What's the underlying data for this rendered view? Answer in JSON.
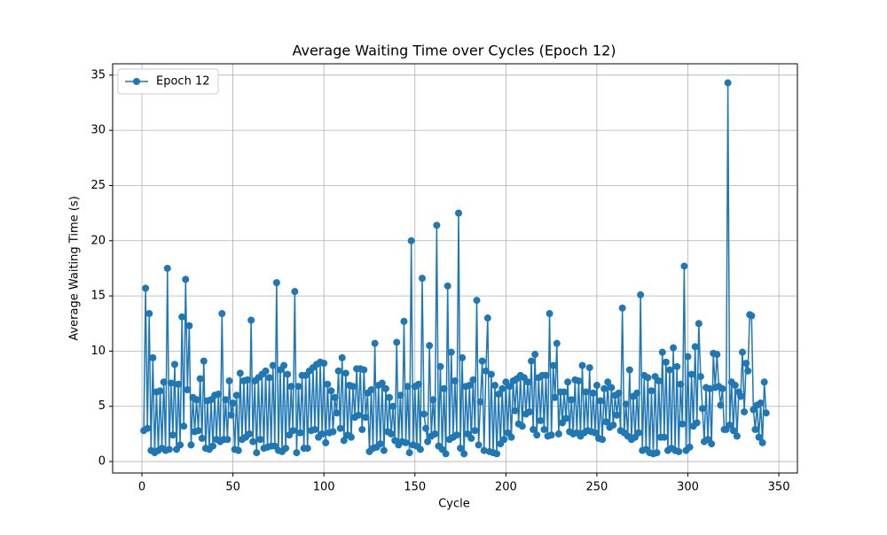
{
  "chart_data": {
    "type": "line",
    "title": "Average Waiting Time over Cycles (Epoch 12)",
    "x_label": "Cycle",
    "y_label": "Average Waiting Time (s)",
    "x": [
      1,
      2,
      3,
      4,
      5,
      6,
      7,
      8,
      9,
      10,
      11,
      12,
      13,
      14,
      15,
      16,
      17,
      18,
      19,
      20,
      21,
      22,
      23,
      24,
      25,
      26,
      27,
      28,
      29,
      30,
      31,
      32,
      33,
      34,
      35,
      36,
      37,
      38,
      39,
      40,
      41,
      42,
      43,
      44,
      45,
      46,
      47,
      48,
      49,
      50,
      51,
      52,
      53,
      54,
      55,
      56,
      57,
      58,
      59,
      60,
      61,
      62,
      63,
      64,
      65,
      66,
      67,
      68,
      69,
      70,
      71,
      72,
      73,
      74,
      75,
      76,
      77,
      78,
      79,
      80,
      81,
      82,
      83,
      84,
      85,
      86,
      87,
      88,
      89,
      90,
      91,
      92,
      93,
      94,
      95,
      96,
      97,
      98,
      99,
      100,
      101,
      102,
      103,
      104,
      105,
      106,
      107,
      108,
      109,
      110,
      111,
      112,
      113,
      114,
      115,
      116,
      117,
      118,
      119,
      120,
      121,
      122,
      123,
      124,
      125,
      126,
      127,
      128,
      129,
      130,
      131,
      132,
      133,
      134,
      135,
      136,
      137,
      138,
      139,
      140,
      141,
      142,
      143,
      144,
      145,
      146,
      147,
      148,
      149,
      150,
      151,
      152,
      153,
      154,
      155,
      156,
      157,
      158,
      159,
      160,
      161,
      162,
      163,
      164,
      165,
      166,
      167,
      168,
      169,
      170,
      171,
      172,
      173,
      174,
      175,
      176,
      177,
      178,
      179,
      180,
      181,
      182,
      183,
      184,
      185,
      186,
      187,
      188,
      189,
      190,
      191,
      192,
      193,
      194,
      195,
      196,
      197,
      198,
      199,
      200,
      201,
      202,
      203,
      204,
      205,
      206,
      207,
      208,
      209,
      210,
      211,
      212,
      213,
      214,
      215,
      216,
      217,
      218,
      219,
      220,
      221,
      222,
      223,
      224,
      225,
      226,
      227,
      228,
      229,
      230,
      231,
      232,
      233,
      234,
      235,
      236,
      237,
      238,
      239,
      240,
      241,
      242,
      243,
      244,
      245,
      246,
      247,
      248,
      249,
      250,
      251,
      252,
      253,
      254,
      255,
      256,
      257,
      258,
      259,
      260,
      261,
      262,
      263,
      264,
      265,
      266,
      267,
      268,
      269,
      270,
      271,
      272,
      273,
      274,
      275,
      276,
      277,
      278,
      279,
      280,
      281,
      282,
      283,
      284,
      285,
      286,
      287,
      288,
      289,
      290,
      291,
      292,
      293,
      294,
      295,
      296,
      297,
      298,
      299,
      300,
      301,
      302,
      303,
      304,
      305,
      306,
      307,
      308,
      309,
      310,
      311,
      312,
      313,
      314,
      315,
      316,
      317,
      318,
      319,
      320,
      321,
      322,
      323,
      324,
      325,
      326,
      327,
      328,
      329,
      330,
      331,
      332,
      333,
      334,
      335,
      336,
      337,
      338,
      339,
      340,
      341,
      342,
      343
    ],
    "series": [
      {
        "name": "Epoch 12",
        "color": "#1f77b4",
        "values": [
          2.8,
          15.7,
          3.0,
          13.4,
          1.0,
          9.4,
          0.8,
          6.3,
          1.0,
          6.4,
          1.2,
          7.2,
          1.0,
          17.5,
          1.1,
          7.1,
          2.4,
          8.8,
          1.1,
          7.0,
          1.5,
          13.1,
          3.2,
          16.5,
          6.5,
          12.3,
          1.5,
          5.8,
          2.7,
          5.6,
          2.8,
          7.5,
          2.1,
          9.1,
          1.2,
          5.5,
          1.1,
          5.6,
          1.4,
          6.0,
          2.0,
          6.1,
          1.8,
          13.4,
          2.0,
          5.6,
          2.0,
          7.3,
          4.2,
          5.3,
          1.1,
          6.0,
          1.0,
          8.0,
          2.0,
          7.3,
          2.2,
          7.4,
          2.5,
          12.8,
          1.8,
          7.3,
          0.8,
          7.6,
          2.0,
          7.9,
          1.2,
          8.2,
          1.3,
          7.6,
          1.4,
          8.7,
          1.4,
          16.2,
          1.0,
          8.3,
          0.9,
          8.7,
          1.2,
          7.9,
          2.4,
          6.8,
          2.8,
          15.4,
          0.8,
          6.8,
          2.6,
          7.8,
          1.2,
          7.8,
          1.2,
          8.2,
          2.8,
          8.5,
          2.9,
          8.8,
          2.2,
          9.0,
          2.5,
          8.9,
          1.7,
          7.0,
          2.6,
          6.4,
          2.7,
          5.8,
          4.4,
          8.2,
          3.0,
          9.4,
          1.9,
          8.0,
          2.4,
          6.9,
          2.2,
          6.8,
          4.0,
          8.4,
          4.2,
          8.4,
          2.9,
          8.3,
          4.0,
          6.2,
          0.9,
          6.5,
          1.2,
          10.7,
          1.3,
          6.9,
          1.6,
          7.1,
          1.0,
          6.6,
          2.7,
          5.8,
          2.5,
          5.0,
          1.9,
          10.8,
          1.5,
          6.0,
          1.8,
          12.7,
          1.7,
          6.8,
          0.8,
          20.0,
          1.5,
          6.8,
          1.4,
          7.0,
          1.1,
          16.6,
          4.3,
          3.0,
          1.8,
          10.5,
          2.3,
          5.6,
          2.5,
          21.4,
          1.4,
          8.6,
          1.1,
          6.6,
          0.7,
          15.9,
          2.0,
          9.9,
          2.2,
          7.3,
          2.4,
          22.5,
          1.2,
          9.4,
          0.7,
          6.8,
          2.5,
          6.9,
          2.1,
          7.4,
          2.8,
          14.6,
          1.5,
          5.4,
          9.1,
          1.0,
          8.2,
          13.0,
          0.9,
          7.9,
          0.8,
          6.9,
          0.7,
          6.1,
          1.6,
          6.6,
          2.0,
          7.2,
          2.6,
          6.8,
          2.2,
          7.3,
          4.6,
          7.5,
          3.4,
          7.8,
          3.2,
          7.6,
          4.3,
          7.2,
          4.5,
          9.1,
          2.9,
          9.7,
          2.4,
          7.6,
          3.7,
          7.8,
          2.9,
          7.8,
          2.3,
          13.4,
          2.4,
          8.7,
          5.8,
          10.7,
          2.5,
          6.3,
          3.5,
          6.3,
          3.9,
          7.2,
          2.7,
          5.6,
          2.5,
          7.4,
          2.6,
          7.3,
          2.3,
          8.7,
          2.6,
          6.3,
          2.8,
          8.5,
          2.7,
          6.2,
          2.6,
          6.9,
          2.1,
          5.5,
          2.0,
          6.6,
          3.6,
          7.2,
          3.1,
          6.7,
          3.3,
          6.0,
          4.2,
          6.2,
          2.8,
          13.9,
          2.6,
          5.2,
          2.3,
          8.3,
          2.0,
          5.9,
          2.2,
          6.2,
          2.6,
          15.1,
          1.0,
          7.8,
          1.1,
          7.6,
          0.8,
          6.4,
          0.7,
          7.7,
          0.8,
          7.3,
          2.2,
          9.9,
          2.2,
          9.0,
          1.0,
          8.3,
          1.2,
          10.3,
          1.0,
          8.6,
          0.9,
          7.0,
          3.4,
          17.7,
          1.0,
          9.5,
          1.3,
          7.9,
          3.2,
          10.4,
          3.5,
          12.5,
          7.7,
          4.8,
          1.8,
          6.7,
          2.0,
          6.6,
          1.6,
          9.8,
          6.7,
          9.7,
          6.8,
          5.1,
          6.6,
          2.9,
          2.9,
          34.3,
          3.3,
          7.2,
          2.8,
          6.9,
          2.3,
          6.3,
          5.9,
          9.9,
          4.5,
          8.9,
          8.2,
          13.3,
          13.2,
          4.7,
          2.9,
          5.1,
          2.2,
          5.3,
          1.7,
          7.2,
          4.4
        ]
      }
    ],
    "xlim": [
      -16.1,
      360.2
    ],
    "ylim": [
      -1.04,
      36.03
    ],
    "xticks": [
      0,
      50,
      100,
      150,
      200,
      250,
      300,
      350
    ],
    "yticks": [
      0,
      5,
      10,
      15,
      20,
      25,
      30,
      35
    ],
    "grid": true,
    "legend": "upper-left"
  }
}
